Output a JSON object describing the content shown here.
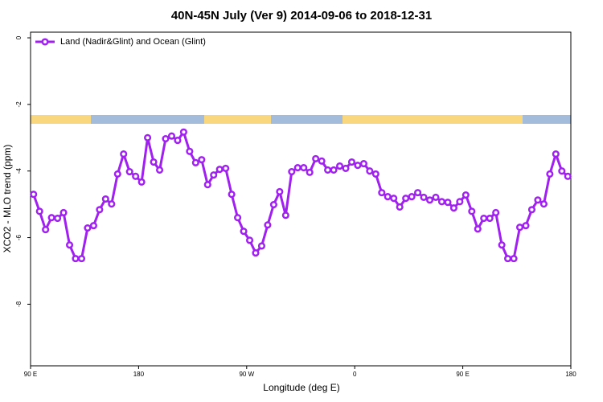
{
  "chart_data": {
    "type": "line",
    "title": "40N-45N July (Ver 9)   2014-09-06 to 2018-12-31",
    "x_label": "Longitude (deg E)",
    "y_label": "XCO2 - MLO trend (ppm)",
    "x": [
      92.5,
      97.5,
      102.5,
      107.5,
      112.5,
      117.5,
      122.5,
      127.5,
      132.5,
      137.5,
      142.5,
      147.5,
      152.5,
      157.5,
      162.5,
      167.5,
      172.5,
      177.5,
      182.5,
      187.5,
      192.5,
      197.5,
      202.5,
      207.5,
      212.5,
      217.5,
      222.5,
      227.5,
      232.5,
      237.5,
      242.5,
      247.5,
      252.5,
      257.5,
      262.5,
      267.5,
      272.5,
      277.5,
      282.5,
      287.5,
      292.5,
      297.5,
      302.5,
      307.5,
      312.5,
      317.5,
      322.5,
      327.5,
      332.5,
      337.5,
      342.5,
      347.5,
      352.5,
      357.5,
      362.5,
      367.5,
      372.5,
      377.5,
      382.5,
      387.5,
      392.5,
      397.5,
      402.5,
      407.5,
      412.5,
      417.5,
      422.5,
      427.5,
      432.5,
      437.5,
      442.5,
      447.5,
      452.5,
      457.5,
      462.5,
      467.5,
      472.5,
      477.5,
      482.5,
      487.5,
      492.5,
      497.5,
      502.5,
      507.5,
      512.5,
      517.5,
      522.5,
      527.5,
      532.5,
      537.5
    ],
    "series": [
      {
        "name": "Land (Nadir&Glint) and Ocean (Glint)",
        "color": "#a020f0",
        "values": [
          -4.7,
          -5.21,
          -5.76,
          -5.4,
          -5.42,
          -5.25,
          -6.22,
          -6.63,
          -6.63,
          -5.71,
          -5.64,
          -5.16,
          -4.84,
          -4.99,
          -4.09,
          -3.49,
          -4.02,
          -4.16,
          -4.33,
          -3.0,
          -3.73,
          -3.97,
          -3.03,
          -2.95,
          -3.08,
          -2.83,
          -3.41,
          -3.75,
          -3.66,
          -4.41,
          -4.12,
          -3.95,
          -3.92,
          -4.7,
          -5.4,
          -5.81,
          -6.08,
          -6.46,
          -6.25,
          -5.62,
          -5.01,
          -4.62,
          -5.33,
          -4.02,
          -3.9,
          -3.9,
          -4.04,
          -3.63,
          -3.7,
          -3.97,
          -3.97,
          -3.85,
          -3.92,
          -3.73,
          -3.83,
          -3.78,
          -4.0,
          -4.09,
          -4.65,
          -4.77,
          -4.82,
          -5.08,
          -4.82,
          -4.77,
          -4.65,
          -4.79,
          -4.87,
          -4.79,
          -4.92,
          -4.94,
          -5.11,
          -4.92,
          -4.72,
          -5.21,
          -5.74,
          -5.42,
          -5.42,
          -5.25,
          -6.22,
          -6.63,
          -6.63,
          -5.69,
          -5.64,
          -5.16,
          -4.87,
          -4.99,
          -4.09,
          -3.49,
          -4.0,
          -4.16
        ]
      }
    ],
    "xlim": [
      90,
      540
    ],
    "xticks": [
      {
        "value": 90,
        "label": "90 E"
      },
      180,
      {
        "value": 270,
        "label": "90 W"
      },
      {
        "value": 360,
        "label": "0"
      },
      {
        "value": 450,
        "label": "90 E"
      },
      {
        "value": 540,
        "label": "180"
      }
    ],
    "ylim": [
      -9.85,
      0.17
    ],
    "yticks": [
      0,
      -2,
      -4,
      -6,
      -8
    ],
    "legend": "top-left"
  }
}
